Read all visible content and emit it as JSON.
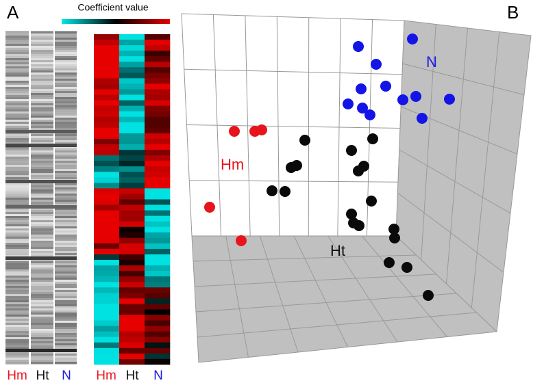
{
  "panel_a": {
    "label": "A",
    "colorbar_label": "Coefficient value",
    "gel_lanes": [
      "Hm",
      "Ht",
      "N"
    ],
    "heatmap_columns": [
      "Hm",
      "Ht",
      "N"
    ]
  },
  "panel_b": {
    "label": "B",
    "groups": [
      "Hm",
      "Ht",
      "N"
    ]
  }
}
